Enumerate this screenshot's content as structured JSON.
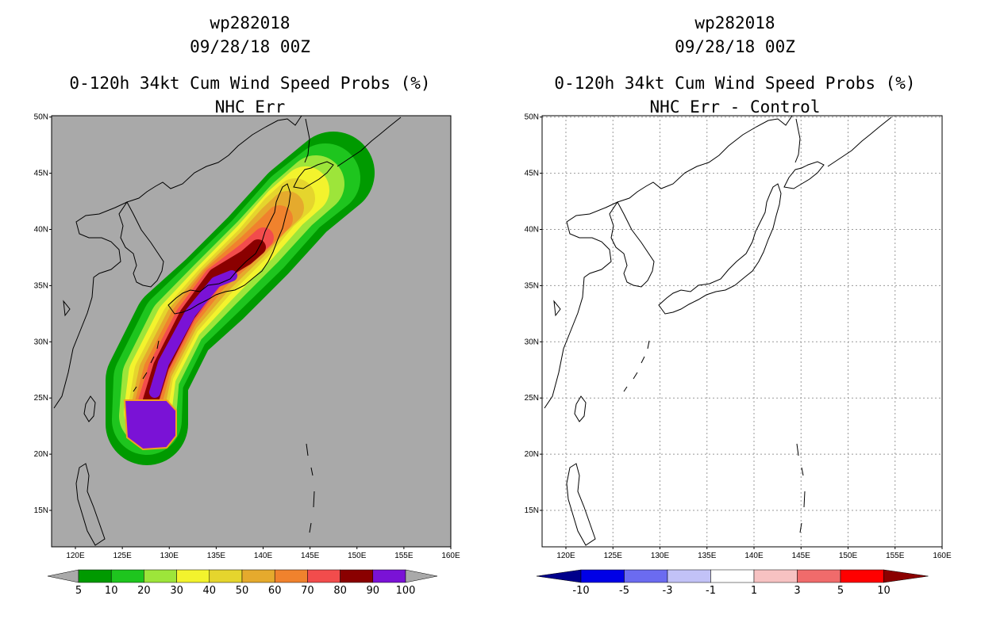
{
  "left_panel": {
    "title_lines": [
      "wp282018",
      "09/28/18 00Z",
      "0-120h 34kt Cum Wind Speed Probs (%)",
      "NHC Err"
    ],
    "background_color": "#a9a9a9",
    "colorbar": {
      "labels": [
        "5",
        "10",
        "20",
        "30",
        "40",
        "50",
        "60",
        "70",
        "80",
        "90",
        "100"
      ],
      "colors": [
        "#009a00",
        "#1ec51e",
        "#9de53a",
        "#f3f32d",
        "#e5d52d",
        "#e5aa2d",
        "#f0822d",
        "#f24c4c",
        "#8a0000",
        "#7a12d6"
      ],
      "end_color": "#a9a9a9"
    }
  },
  "right_panel": {
    "title_lines": [
      "wp282018",
      "09/28/18 00Z",
      "0-120h 34kt Cum Wind Speed Probs (%)",
      "NHC Err - Control"
    ],
    "background_color": "#ffffff",
    "colorbar": {
      "labels": [
        "-10",
        "-5",
        "-3",
        "-1",
        "1",
        "3",
        "5",
        "10"
      ],
      "colors": [
        "#0000e6",
        "#6b6bf0",
        "#c2c2f7",
        "#ffffff",
        "#f7c2c2",
        "#f06b6b",
        "#ff0000"
      ],
      "start_color": "#00008b",
      "end_color": "#8b0000"
    }
  },
  "axes": {
    "lon_labels": [
      "120E",
      "125E",
      "130E",
      "135E",
      "140E",
      "145E",
      "150E",
      "155E",
      "160E"
    ],
    "lat_labels": [
      "15N",
      "20N",
      "25N",
      "30N",
      "35N",
      "40N",
      "45N",
      "50N"
    ]
  }
}
